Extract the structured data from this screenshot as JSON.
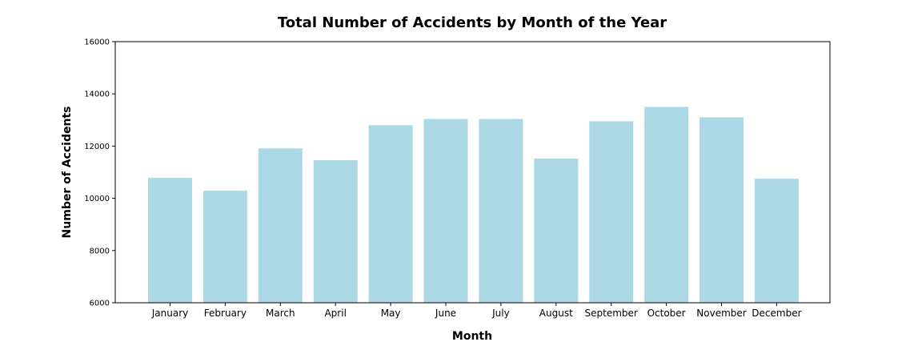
{
  "chart_data": {
    "type": "bar",
    "title": "Total Number of Accidents by Month of the Year",
    "xlabel": "Month",
    "ylabel": "Number of Accidents",
    "ylim": [
      6000,
      16000
    ],
    "yticks": [
      6000,
      8000,
      10000,
      12000,
      14000,
      16000
    ],
    "categories": [
      "January",
      "February",
      "March",
      "April",
      "May",
      "June",
      "July",
      "August",
      "September",
      "October",
      "November",
      "December"
    ],
    "values": [
      10780,
      10290,
      11910,
      11460,
      12800,
      13040,
      13040,
      11520,
      12950,
      13500,
      13100,
      10750
    ],
    "bar_color": "#add8e6",
    "grid": false,
    "legend": "none"
  }
}
